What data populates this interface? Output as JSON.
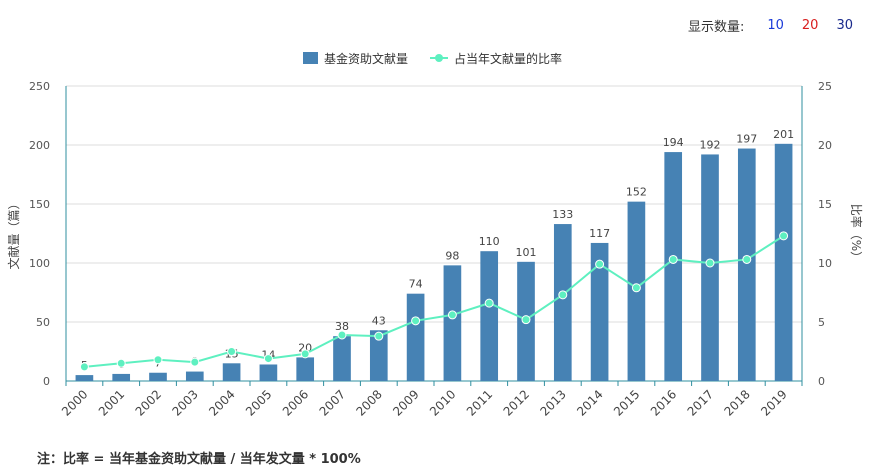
{
  "header": {
    "title": "",
    "display_label": "显示数量:",
    "display_options": [
      {
        "label": "10",
        "color": "#1a3ad9"
      },
      {
        "label": "20",
        "color": "#d81e1e"
      },
      {
        "label": "30",
        "color": "#1a2a8c"
      }
    ]
  },
  "footnote": "注：比率 = 当年基金资助文献量 / 当年发文量 * 100%",
  "chart_data": {
    "type": "bar",
    "x": [
      "2000",
      "2001",
      "2002",
      "2003",
      "2004",
      "2005",
      "2006",
      "2007",
      "2008",
      "2009",
      "2010",
      "2011",
      "2012",
      "2013",
      "2014",
      "2015",
      "2016",
      "2017",
      "2018",
      "2019"
    ],
    "series": [
      {
        "name": "基金资助文献量",
        "type": "bar",
        "axis": "left",
        "color": "#4682b4",
        "values": [
          5,
          6,
          7,
          8,
          15,
          14,
          20,
          38,
          43,
          74,
          98,
          110,
          101,
          133,
          117,
          152,
          194,
          192,
          197,
          201
        ]
      },
      {
        "name": "占当年文献量的比率",
        "type": "line",
        "axis": "right",
        "color": "#5ef0c0",
        "values": [
          1.2,
          1.5,
          1.8,
          1.6,
          2.5,
          1.9,
          2.3,
          3.9,
          3.8,
          5.1,
          5.6,
          6.6,
          5.2,
          7.3,
          9.9,
          7.9,
          10.3,
          10.0,
          10.3,
          12.3
        ]
      }
    ],
    "ylabel_left": "文献量（篇）",
    "ylabel_right": "比率（%）",
    "ylim_left": [
      0,
      250
    ],
    "ylim_right": [
      0,
      25
    ],
    "yticks_left": [
      0,
      50,
      100,
      150,
      200,
      250
    ],
    "yticks_right": [
      0,
      5,
      10,
      15,
      20,
      25
    ],
    "grid": true,
    "legend_position": "top-center"
  }
}
